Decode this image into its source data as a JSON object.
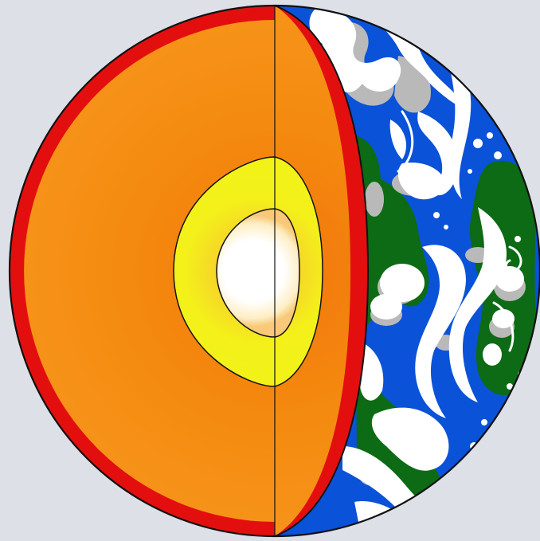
{
  "diagram": {
    "subject": "earth-cutaway",
    "layers": [
      {
        "id": "crust",
        "color": "#e30f0f"
      },
      {
        "id": "mantle",
        "color": "#f7900f"
      },
      {
        "id": "outer-core",
        "color": "#f2f219"
      },
      {
        "id": "inner-core",
        "color": "#ffffff"
      }
    ],
    "surface": {
      "ocean_color": "#0a52d8",
      "land_color": "#0c6b14",
      "cloud_color": "#ffffff",
      "cloud_shadow_color": "#b9b9b9"
    },
    "background_color": "#dde0e6",
    "outline_color": "#111111"
  }
}
